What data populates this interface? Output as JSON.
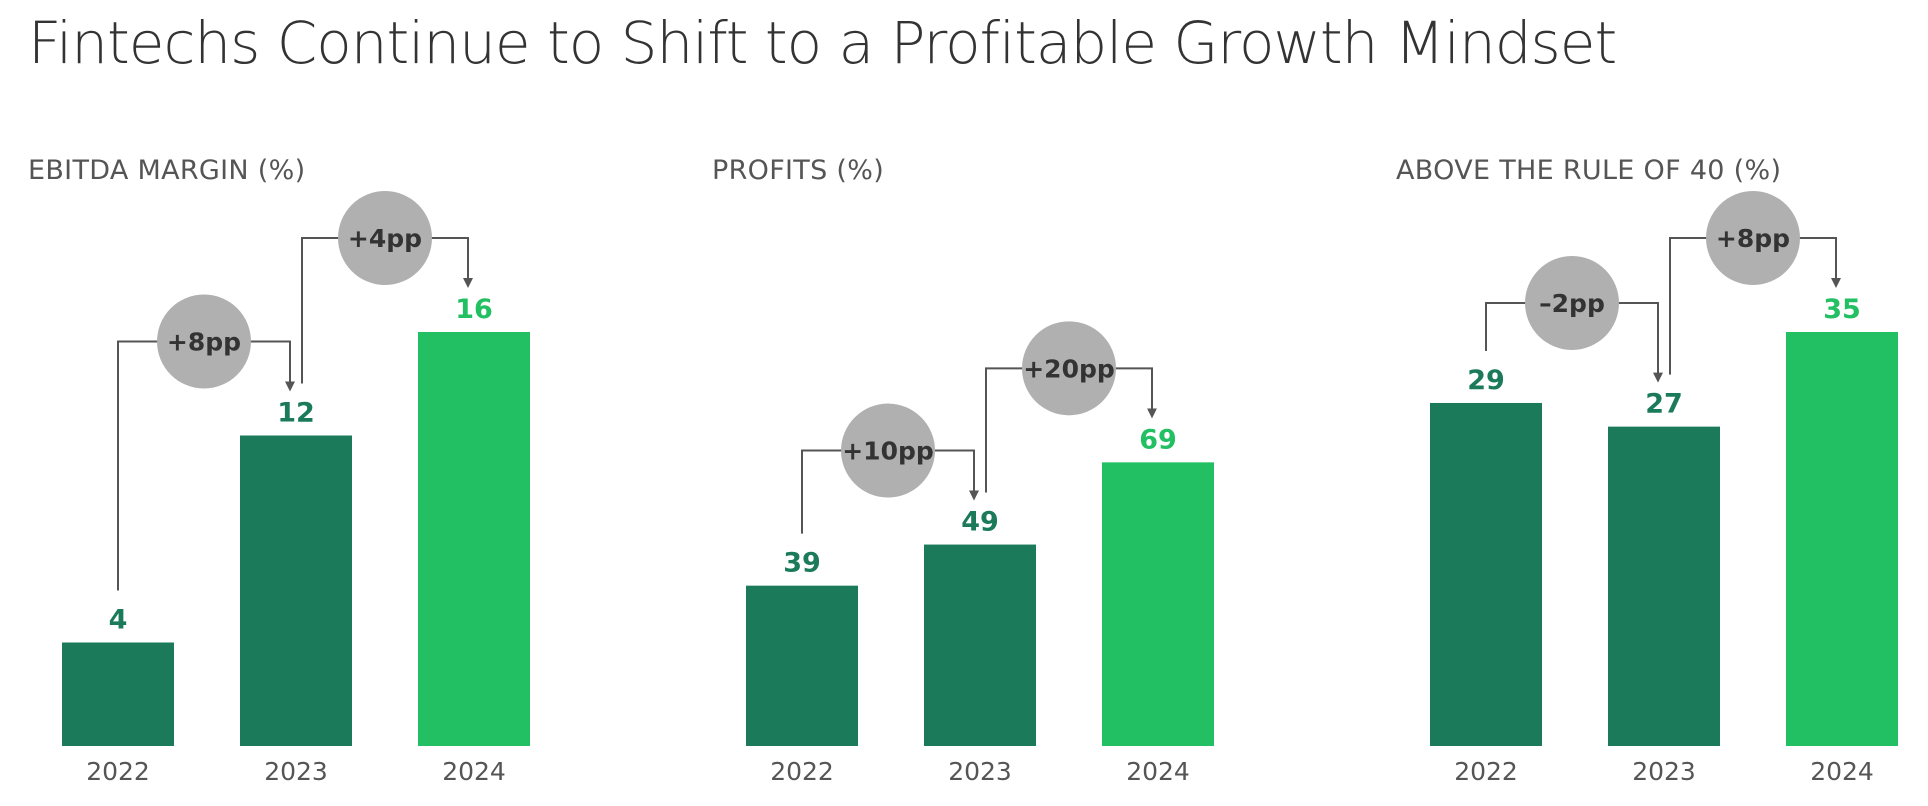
{
  "title": "Fintechs Continue to Shift to a Profitable Growth Mindset",
  "colors": {
    "dark_green": "#1b7a59",
    "bright_green": "#22c063",
    "bubble": "#b0b0b0",
    "connector": "#555555",
    "title_text": "#333333"
  },
  "chart_data": [
    {
      "type": "bar",
      "title": "EBITDA MARGIN (%)",
      "categories": [
        "2022",
        "2023",
        "2024"
      ],
      "values": [
        4,
        12,
        16
      ],
      "value_labels": [
        "4",
        "12",
        "16"
      ],
      "highlight_index": 2,
      "ylim": [
        0,
        16
      ],
      "deltas": [
        {
          "from": "2022",
          "to": "2023",
          "label": "+8pp"
        },
        {
          "from": "2023",
          "to": "2024",
          "label": "+4pp"
        }
      ]
    },
    {
      "type": "bar",
      "title": "PROFITS (%)",
      "categories": [
        "2022",
        "2023",
        "2024"
      ],
      "values": [
        39,
        49,
        69
      ],
      "value_labels": [
        "39",
        "49",
        "69"
      ],
      "highlight_index": 2,
      "ylim": [
        0,
        90
      ],
      "deltas": [
        {
          "from": "2022",
          "to": "2023",
          "label": "+10pp"
        },
        {
          "from": "2023",
          "to": "2024",
          "label": "+20pp"
        }
      ]
    },
    {
      "type": "bar",
      "title": "ABOVE THE RULE OF 40 (%)",
      "categories": [
        "2022",
        "2023",
        "2024"
      ],
      "values": [
        29,
        27,
        35
      ],
      "value_labels": [
        "29",
        "27",
        "35"
      ],
      "highlight_index": 2,
      "ylim": [
        0,
        35
      ],
      "deltas": [
        {
          "from": "2022",
          "to": "2023",
          "label": "–2pp"
        },
        {
          "from": "2023",
          "to": "2024",
          "label": "+8pp"
        }
      ]
    }
  ]
}
